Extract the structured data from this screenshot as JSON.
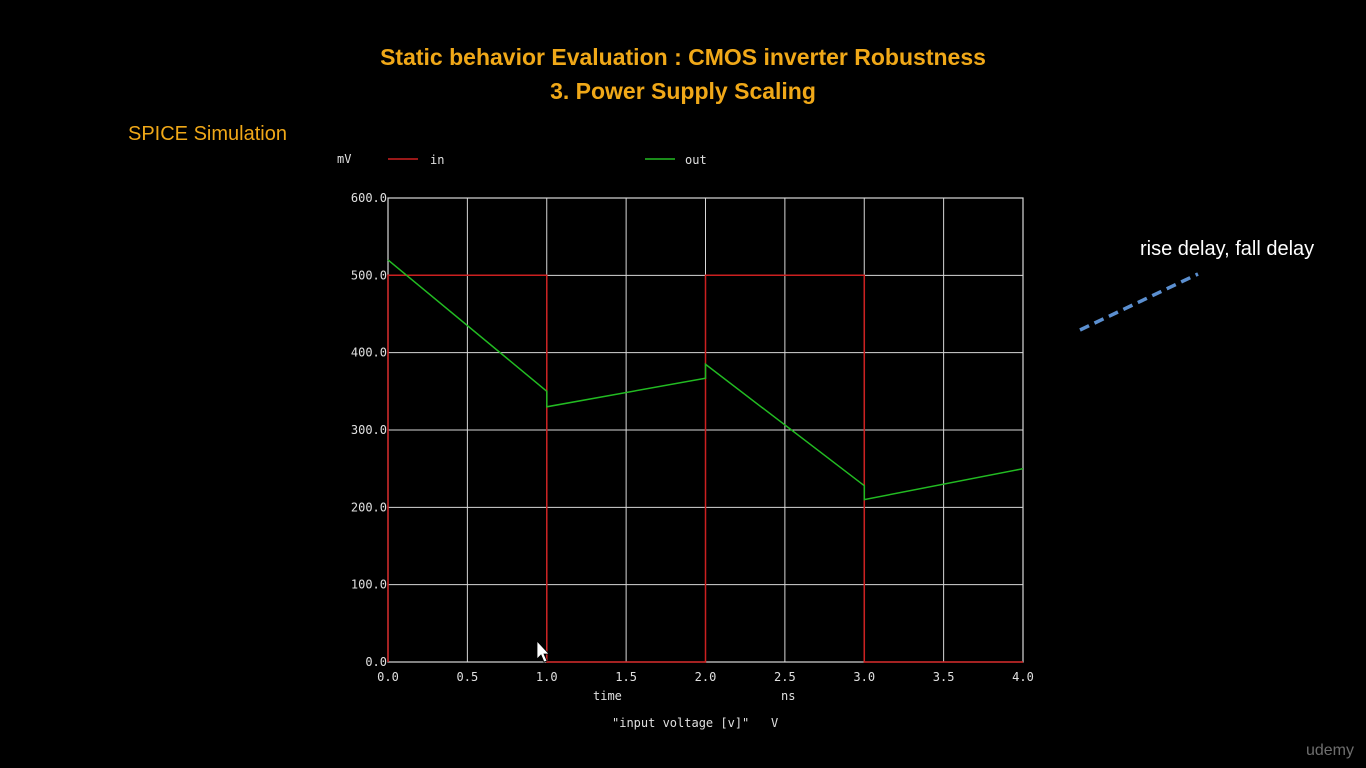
{
  "slide": {
    "title_line1": "Static behavior Evaluation : CMOS inverter Robustness",
    "title_line2": "3. Power Supply Scaling",
    "section_label": "SPICE Simulation",
    "annotation": "rise delay, fall delay",
    "watermark": "udemy"
  },
  "colors": {
    "background": "#000000",
    "title": "#f0a818",
    "grid": "#d8d8d8",
    "series_in": "#cc2020",
    "series_out": "#22bb22",
    "annotation_arrow": "#5b8fd0"
  },
  "chart_data": {
    "type": "line",
    "y_unit": "mV",
    "x_label": "time",
    "x_unit": "ns",
    "footer": "\"input voltage [v]\"   V",
    "xlim": [
      0.0,
      4.0
    ],
    "ylim": [
      0.0,
      600.0
    ],
    "x_ticks": [
      "0.0",
      "0.5",
      "1.0",
      "1.5",
      "2.0",
      "2.5",
      "3.0",
      "3.5",
      "4.0"
    ],
    "y_ticks": [
      "0.0",
      "100.0",
      "200.0",
      "300.0",
      "400.0",
      "500.0",
      "600.0"
    ],
    "grid": true,
    "legend_position": "top",
    "series": [
      {
        "name": "in",
        "points": [
          [
            0.0,
            0
          ],
          [
            0.0,
            500
          ],
          [
            1.0,
            500
          ],
          [
            1.0,
            0
          ],
          [
            2.0,
            0
          ],
          [
            2.0,
            500
          ],
          [
            3.0,
            500
          ],
          [
            3.0,
            0
          ],
          [
            4.0,
            0
          ]
        ]
      },
      {
        "name": "out",
        "points": [
          [
            0.0,
            520
          ],
          [
            1.0,
            350
          ],
          [
            1.0,
            330
          ],
          [
            2.0,
            367
          ],
          [
            2.0,
            385
          ],
          [
            3.0,
            228
          ],
          [
            3.0,
            210
          ],
          [
            4.0,
            250
          ]
        ]
      }
    ]
  }
}
